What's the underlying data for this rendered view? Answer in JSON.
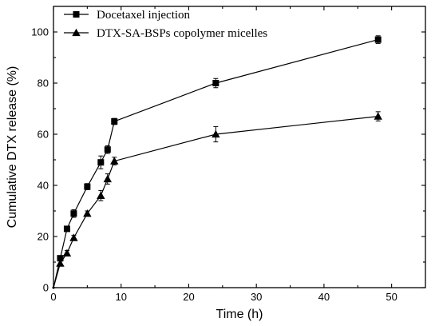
{
  "chart_data": {
    "type": "line",
    "xlabel": "Time (h)",
    "ylabel": "Cumulative DTX release (%)",
    "xlim": [
      0,
      55
    ],
    "ylim": [
      0,
      110
    ],
    "xticks": [
      0,
      10,
      20,
      30,
      40,
      50
    ],
    "yticks": [
      0,
      20,
      40,
      60,
      80,
      100
    ],
    "legend_position": "top-left",
    "grid": false,
    "series": [
      {
        "name": "Docetaxel injection",
        "marker": "square",
        "x": [
          0,
          1,
          2,
          3,
          5,
          7,
          8,
          9,
          24,
          48
        ],
        "y": [
          0,
          11.5,
          23,
          29,
          39.5,
          49,
          54,
          65,
          80,
          97
        ],
        "err": [
          0,
          1,
          1,
          1.5,
          1.2,
          2.5,
          1.5,
          1.2,
          1.8,
          1.5
        ]
      },
      {
        "name": "DTX-SA-BSPs copolymer micelles",
        "marker": "triangle",
        "x": [
          0,
          1,
          2,
          3,
          5,
          7,
          8,
          9,
          24,
          48
        ],
        "y": [
          0,
          9.5,
          13.5,
          19.5,
          29,
          36,
          42.5,
          49.5,
          60,
          67
        ],
        "err": [
          0,
          1,
          1,
          1,
          1,
          2,
          2,
          1.5,
          3,
          1.8
        ]
      }
    ]
  }
}
